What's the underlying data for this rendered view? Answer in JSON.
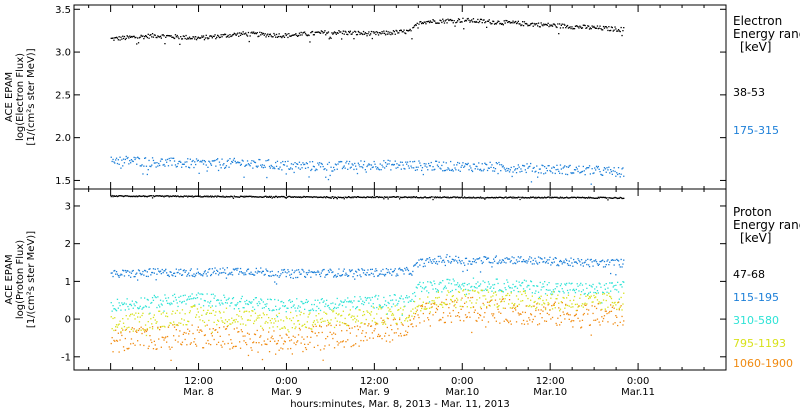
{
  "chart_data": [
    {
      "type": "scatter",
      "title": "",
      "ylabel_lines": [
        "ACE EPAM",
        "log(Electron Flux)",
        "[1/(cm²s ster MeV)]"
      ],
      "ylim": [
        1.4,
        3.55
      ],
      "yticks": [
        1.5,
        2.0,
        2.5,
        3.0,
        3.5
      ],
      "ytick_labels": [
        "1.5",
        "2.0",
        "2.5",
        "3.0",
        "3.5"
      ],
      "legend_title_lines": [
        "Electron",
        "Energy ranges",
        "[keV]"
      ],
      "series": [
        {
          "name": "38-53",
          "color": "#000000",
          "points": [
            [
              0,
              3.16
            ],
            [
              6,
              3.2
            ],
            [
              12,
              3.17
            ],
            [
              18,
              3.22
            ],
            [
              24,
              3.2
            ],
            [
              30,
              3.24
            ],
            [
              36,
              3.22
            ],
            [
              41,
              3.25
            ],
            [
              42,
              3.36
            ],
            [
              48,
              3.38
            ],
            [
              54,
              3.35
            ],
            [
              60,
              3.32
            ],
            [
              66,
              3.29
            ],
            [
              70,
              3.27
            ]
          ]
        },
        {
          "name": "175-315",
          "color": "#1c7fd8",
          "points": [
            [
              0,
              1.75
            ],
            [
              6,
              1.72
            ],
            [
              12,
              1.7
            ],
            [
              18,
              1.71
            ],
            [
              24,
              1.68
            ],
            [
              30,
              1.67
            ],
            [
              36,
              1.69
            ],
            [
              42,
              1.68
            ],
            [
              48,
              1.67
            ],
            [
              54,
              1.66
            ],
            [
              60,
              1.64
            ],
            [
              66,
              1.62
            ],
            [
              70,
              1.6
            ]
          ]
        }
      ]
    },
    {
      "type": "scatter",
      "title": "",
      "ylabel_lines": [
        "ACE EPAM",
        "log(Proton Flux)",
        "[1/(cm²s ster MeV)]"
      ],
      "ylim": [
        -1.35,
        3.45
      ],
      "yticks": [
        -1,
        0,
        1,
        2,
        3
      ],
      "ytick_labels": [
        "-1",
        "0",
        "1",
        "2",
        "3"
      ],
      "legend_title_lines": [
        "Proton",
        "Energy ranges",
        "[keV]"
      ],
      "series": [
        {
          "name": "47-68",
          "color": "#000000",
          "points": [
            [
              0,
              3.28
            ],
            [
              10,
              3.27
            ],
            [
              20,
              3.26
            ],
            [
              30,
              3.25
            ],
            [
              40,
              3.25
            ],
            [
              50,
              3.24
            ],
            [
              60,
              3.24
            ],
            [
              70,
              3.23
            ]
          ]
        },
        {
          "name": "115-195",
          "color": "#1c7fd8",
          "points": [
            [
              0,
              1.2
            ],
            [
              6,
              1.25
            ],
            [
              12,
              1.25
            ],
            [
              18,
              1.3
            ],
            [
              24,
              1.22
            ],
            [
              30,
              1.24
            ],
            [
              36,
              1.25
            ],
            [
              41,
              1.28
            ],
            [
              42,
              1.5
            ],
            [
              46,
              1.62
            ],
            [
              48,
              1.55
            ],
            [
              54,
              1.6
            ],
            [
              60,
              1.55
            ],
            [
              66,
              1.5
            ],
            [
              70,
              1.5
            ]
          ]
        },
        {
          "name": "310-580",
          "color": "#2ee3d6",
          "points": [
            [
              0,
              0.38
            ],
            [
              6,
              0.48
            ],
            [
              12,
              0.55
            ],
            [
              18,
              0.45
            ],
            [
              24,
              0.38
            ],
            [
              30,
              0.42
            ],
            [
              36,
              0.48
            ],
            [
              41,
              0.52
            ],
            [
              42,
              0.82
            ],
            [
              48,
              0.95
            ],
            [
              54,
              0.9
            ],
            [
              60,
              0.85
            ],
            [
              66,
              0.8
            ],
            [
              70,
              0.85
            ]
          ]
        },
        {
          "name": "795-1193",
          "color": "#d8e21c",
          "points": [
            [
              0,
              -0.15
            ],
            [
              6,
              0.0
            ],
            [
              12,
              0.15
            ],
            [
              18,
              0.05
            ],
            [
              24,
              -0.05
            ],
            [
              30,
              0.02
            ],
            [
              36,
              0.1
            ],
            [
              41,
              0.15
            ],
            [
              42,
              0.48
            ],
            [
              48,
              0.58
            ],
            [
              54,
              0.55
            ],
            [
              60,
              0.5
            ],
            [
              66,
              0.45
            ],
            [
              70,
              0.5
            ]
          ]
        },
        {
          "name": "1060-1900",
          "color": "#f08a10",
          "points": [
            [
              0,
              -0.55
            ],
            [
              6,
              -0.5
            ],
            [
              12,
              -0.4
            ],
            [
              18,
              -0.55
            ],
            [
              24,
              -0.6
            ],
            [
              30,
              -0.45
            ],
            [
              36,
              -0.3
            ],
            [
              41,
              -0.2
            ],
            [
              42,
              0.08
            ],
            [
              48,
              0.28
            ],
            [
              54,
              0.22
            ],
            [
              60,
              0.15
            ],
            [
              66,
              0.1
            ],
            [
              70,
              0.15
            ]
          ]
        }
      ]
    }
  ],
  "x_axis": {
    "range_hours": [
      -5,
      84
    ],
    "ticks": [
      {
        "hours": 12,
        "time": "12:00",
        "day": "Mar. 8"
      },
      {
        "hours": 24,
        "time": "0:00",
        "day": "Mar. 9"
      },
      {
        "hours": 36,
        "time": "12:00",
        "day": "Mar. 9"
      },
      {
        "hours": 48,
        "time": "0:00",
        "day": "Mar.10"
      },
      {
        "hours": 60,
        "time": "12:00",
        "day": "Mar.10"
      },
      {
        "hours": 72,
        "time": "0:00",
        "day": "Mar.11"
      }
    ],
    "label": "hours:minutes, Mar.  8, 2013 - Mar. 11, 2013"
  }
}
